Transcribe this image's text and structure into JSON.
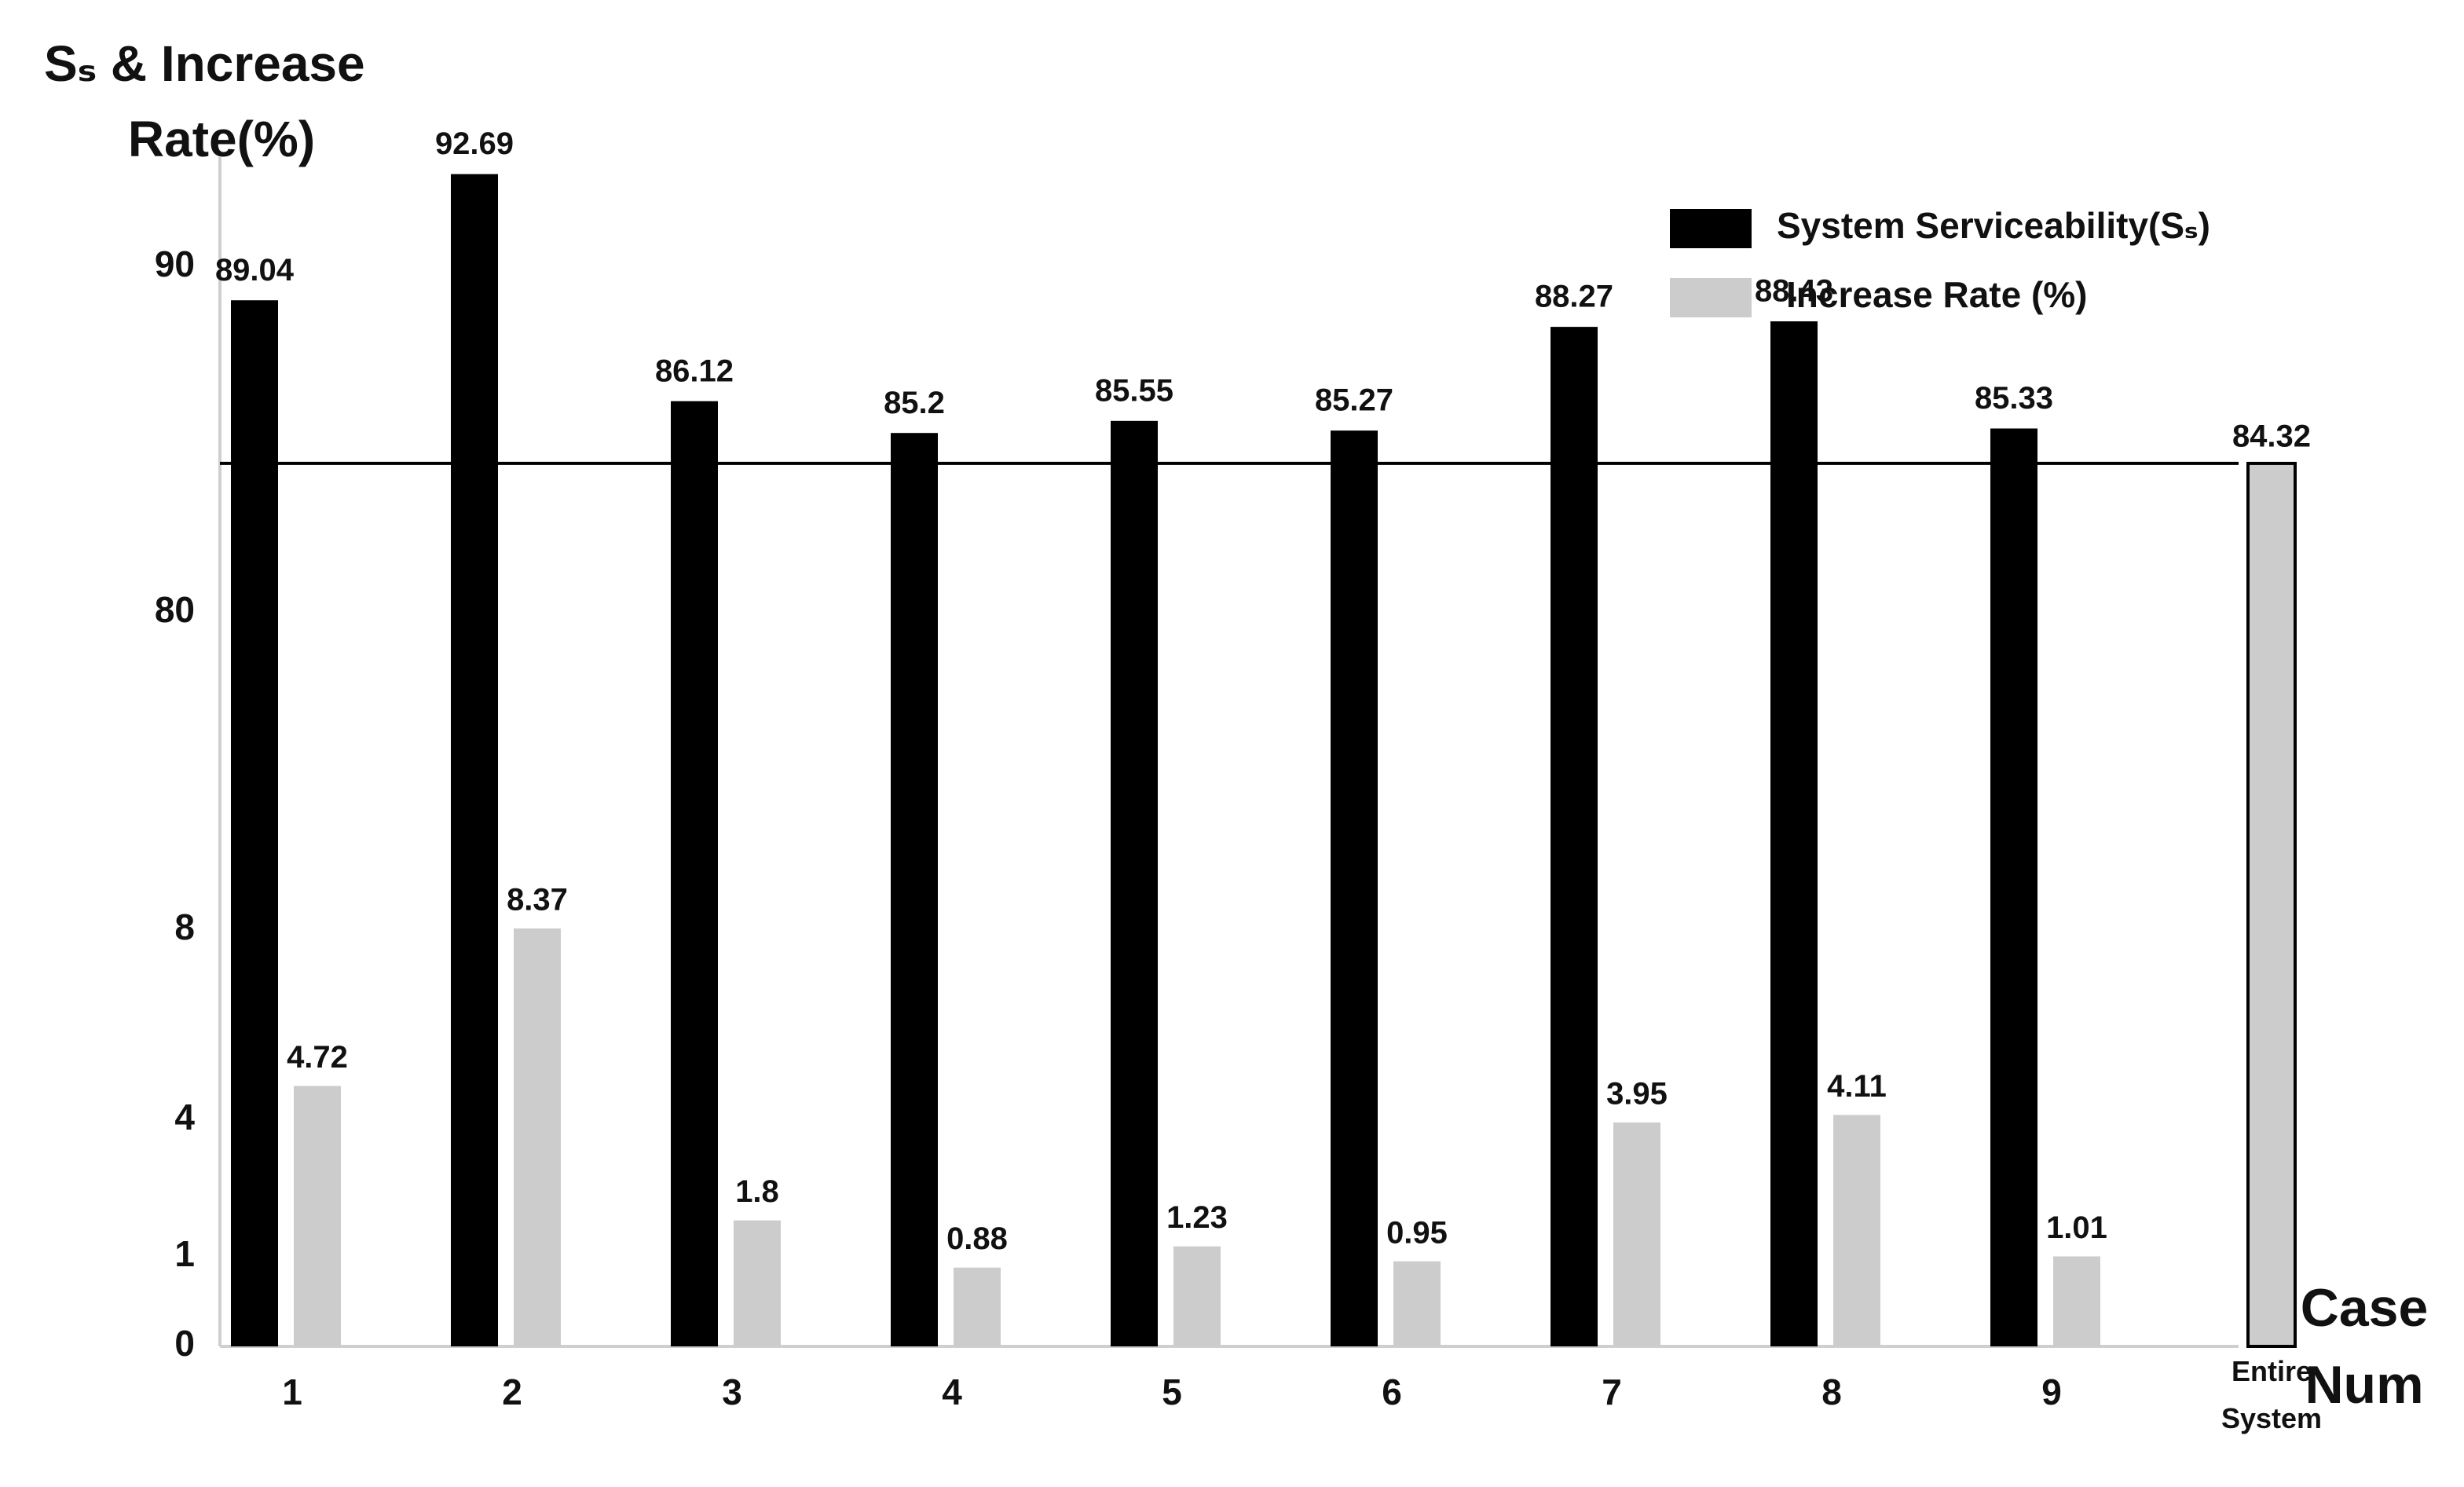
{
  "chart_data": {
    "type": "bar",
    "y_label": [
      "Sₛ & Increase",
      "Rate(%)"
    ],
    "x_label": [
      "Case",
      "Num"
    ],
    "categories": [
      "1",
      "2",
      "3",
      "4",
      "5",
      "6",
      "7",
      "8",
      "9",
      "Entire System"
    ],
    "series": [
      {
        "name": "System Serviceability(Sₛ)",
        "color": "#000000",
        "values": [
          89.04,
          92.69,
          86.12,
          85.2,
          85.55,
          85.27,
          88.27,
          88.43,
          85.33,
          84.32
        ]
      },
      {
        "name": "Increase Rate (%)",
        "color": "#cccccc",
        "values": [
          4.72,
          8.37,
          1.8,
          0.88,
          1.23,
          0.95,
          3.95,
          4.11,
          1.01,
          null
        ]
      }
    ],
    "yticks": [
      0,
      1,
      4,
      8,
      80,
      90
    ],
    "legend": "upper right"
  }
}
